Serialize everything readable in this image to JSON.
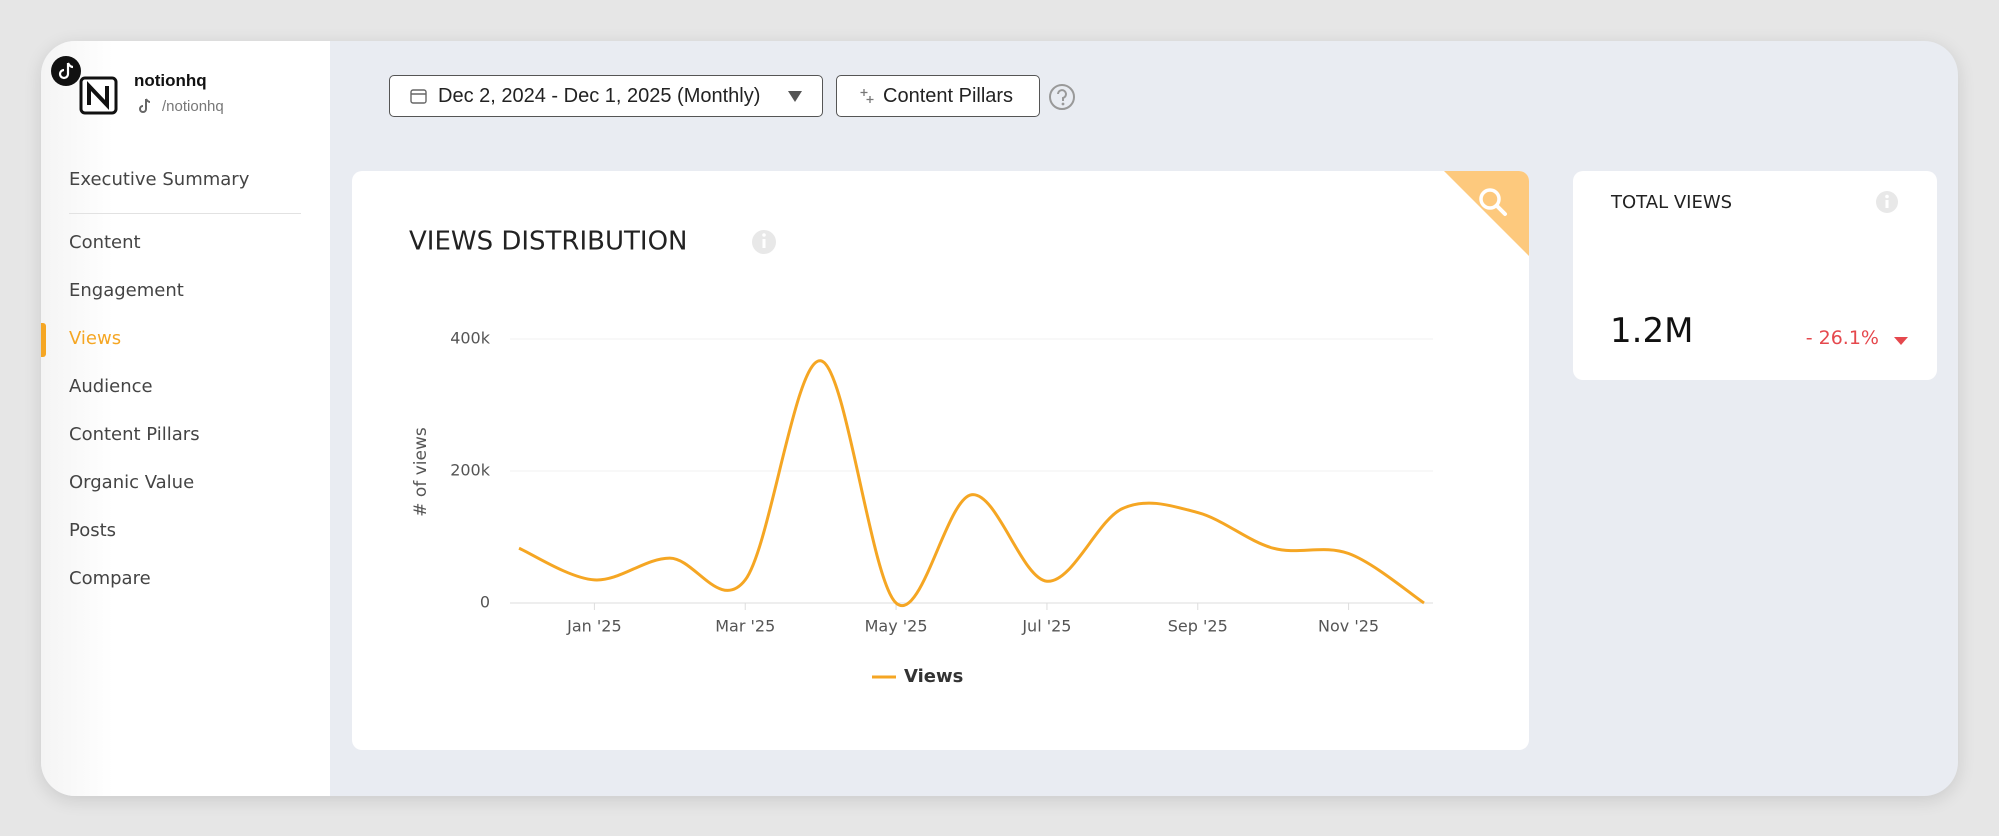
{
  "account": {
    "name": "notionhq",
    "handle": "/notionhq"
  },
  "nav": {
    "items": [
      "Executive Summary",
      "Content",
      "Engagement",
      "Views",
      "Audience",
      "Content Pillars",
      "Organic Value",
      "Posts",
      "Compare"
    ],
    "active": 3
  },
  "toolbar": {
    "date_range": "Dec 2, 2024 - Dec 1, 2025 (Monthly)",
    "filter": "Content Pillars"
  },
  "chart_data": {
    "type": "line",
    "title": "VIEWS DISTRIBUTION",
    "y_label": "# of views",
    "categories": [
      null,
      "Jan '25",
      null,
      "Mar '25",
      null,
      "May '25",
      null,
      "Jul '25",
      null,
      "Sep '25",
      null,
      "Nov '25",
      null
    ],
    "series": [
      {
        "name": "Views",
        "color": "#f5a623",
        "values": [
          83000,
          35000,
          68000,
          35000,
          367000,
          0,
          164000,
          33000,
          143000,
          137000,
          83000,
          75000,
          0
        ]
      }
    ],
    "ylim": [
      0,
      400000
    ],
    "yticks": [
      0,
      {
        "value": 200000,
        "label": "200k"
      },
      {
        "value": 400000,
        "label": "400k"
      }
    ],
    "grid": true
  },
  "total_views": {
    "title": "TOTAL VIEWS",
    "value": "1.2M",
    "change": "- 26.1%"
  }
}
